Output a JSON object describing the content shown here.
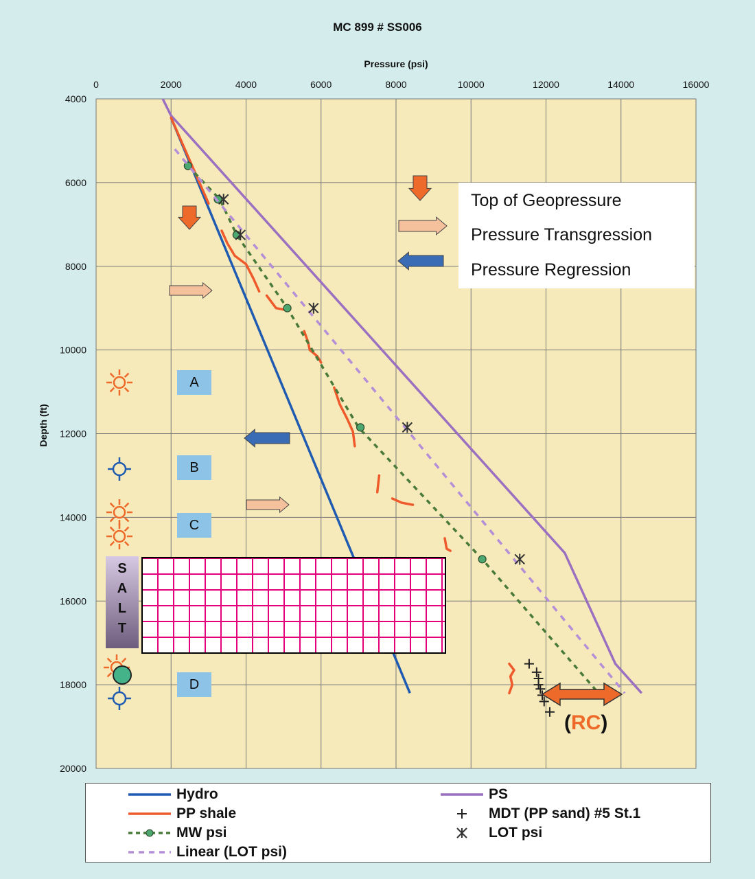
{
  "chart_data": {
    "type": "scatter",
    "title": "MC 899 # SS006",
    "xlabel": "Pressure (psi)",
    "ylabel": "Depth (ft)",
    "xlim": [
      0,
      16000
    ],
    "ylim": [
      4000,
      20000
    ],
    "x_ticks": [
      "0",
      "2000",
      "4000",
      "6000",
      "8000",
      "10000",
      "12000",
      "14000",
      "16000"
    ],
    "y_ticks": [
      "4000",
      "6000",
      "8000",
      "10000",
      "12000",
      "14000",
      "16000",
      "18000",
      "20000"
    ],
    "y_inverted": true,
    "grid": true,
    "series": [
      {
        "name": "Hydro",
        "style": "solid",
        "color": "#1f5bb0",
        "points": [
          [
            2000,
            4450
          ],
          [
            8370,
            18200
          ]
        ]
      },
      {
        "name": "PS",
        "style": "solid",
        "color": "#9b70c0",
        "points": [
          [
            1750,
            3950
          ],
          [
            2000,
            4400
          ],
          [
            12500,
            14850
          ],
          [
            13850,
            17500
          ],
          [
            14550,
            18200
          ]
        ]
      },
      {
        "name": "PP shale",
        "style": "solid",
        "color": "#ee5a2b",
        "segments": [
          [
            [
              2000,
              4450
            ],
            [
              3000,
              6500
            ]
          ],
          [
            [
              3350,
              7150
            ],
            [
              3500,
              7450
            ],
            [
              3700,
              7750
            ],
            [
              4000,
              7950
            ],
            [
              4200,
              8300
            ],
            [
              4350,
              8600
            ]
          ],
          [
            [
              4550,
              8700
            ],
            [
              4800,
              9000
            ],
            [
              5100,
              9050
            ]
          ],
          [
            [
              5550,
              9550
            ],
            [
              5650,
              9800
            ],
            [
              5700,
              10000
            ],
            [
              5900,
              10150
            ],
            [
              6000,
              10300
            ]
          ],
          [
            [
              6350,
              10900
            ],
            [
              6500,
              11300
            ],
            [
              6700,
              11650
            ],
            [
              6850,
              11950
            ],
            [
              6900,
              12300
            ]
          ],
          [
            [
              7550,
              13000
            ],
            [
              7500,
              13400
            ]
          ],
          [
            [
              7900,
              13550
            ],
            [
              8150,
              13650
            ],
            [
              8450,
              13700
            ]
          ],
          [
            [
              9300,
              14500
            ],
            [
              9350,
              14750
            ],
            [
              9450,
              14800
            ]
          ],
          [
            [
              11020,
              17500
            ],
            [
              11150,
              17650
            ],
            [
              11050,
              17800
            ],
            [
              11100,
              18000
            ],
            [
              11020,
              18200
            ]
          ]
        ]
      },
      {
        "name": "MW psi",
        "style": "dashed-dots",
        "color": "#4a7a3a",
        "points": [
          [
            2450,
            5600
          ],
          [
            3300,
            6400
          ],
          [
            3750,
            7250
          ],
          [
            5100,
            9000
          ],
          [
            7000,
            11850
          ],
          [
            10300,
            15000
          ],
          [
            13400,
            18200
          ]
        ],
        "markers": [
          [
            2450,
            5600
          ],
          [
            3250,
            6400
          ],
          [
            3750,
            7250
          ],
          [
            5100,
            9000
          ],
          [
            7050,
            11850
          ],
          [
            10300,
            15000
          ]
        ]
      },
      {
        "name": "Linear (LOT psi)",
        "style": "dashed",
        "color": "#b48fd8",
        "points": [
          [
            2100,
            5200
          ],
          [
            14100,
            18200
          ]
        ]
      },
      {
        "name": "MDT (PP sand) #5 St.1",
        "style": "plus",
        "color": "#222",
        "points": [
          [
            11550,
            17500
          ],
          [
            11750,
            17700
          ],
          [
            11800,
            17850
          ],
          [
            11800,
            18000
          ],
          [
            11850,
            18100
          ],
          [
            11900,
            18250
          ],
          [
            11950,
            18400
          ],
          [
            12100,
            18650
          ]
        ]
      },
      {
        "name": "LOT psi",
        "style": "asterisk",
        "color": "#333",
        "points": [
          [
            3400,
            6400
          ],
          [
            3850,
            7250
          ],
          [
            5800,
            9000
          ],
          [
            8300,
            11850
          ],
          [
            11300,
            15000
          ]
        ]
      }
    ]
  },
  "zones": [
    "A",
    "B",
    "C",
    "D"
  ],
  "salt_label": [
    "S",
    "A",
    "L",
    "T"
  ],
  "key": {
    "top_of_geopressure": "Top of Geopressure",
    "pressure_transgression": "Pressure Transgression",
    "pressure_regression": "Pressure Regression"
  },
  "rc": {
    "open": "(",
    "text": "RC",
    "close": ")"
  },
  "legend": {
    "hydro": "Hydro",
    "pp_shale": "PP shale",
    "mw_psi": "MW psi",
    "linear_lot": "Linear (LOT psi)",
    "ps": "PS",
    "mdt": "MDT (PP sand) #5 St.1",
    "lot_psi": "LOT psi"
  },
  "colors": {
    "plot_bg": "#f7eaba",
    "page_bg": "#d5ecec",
    "arrow_orange": "#ee6a2b",
    "arrow_peach": "#f5c19c",
    "arrow_blue": "#3a6cb6"
  }
}
